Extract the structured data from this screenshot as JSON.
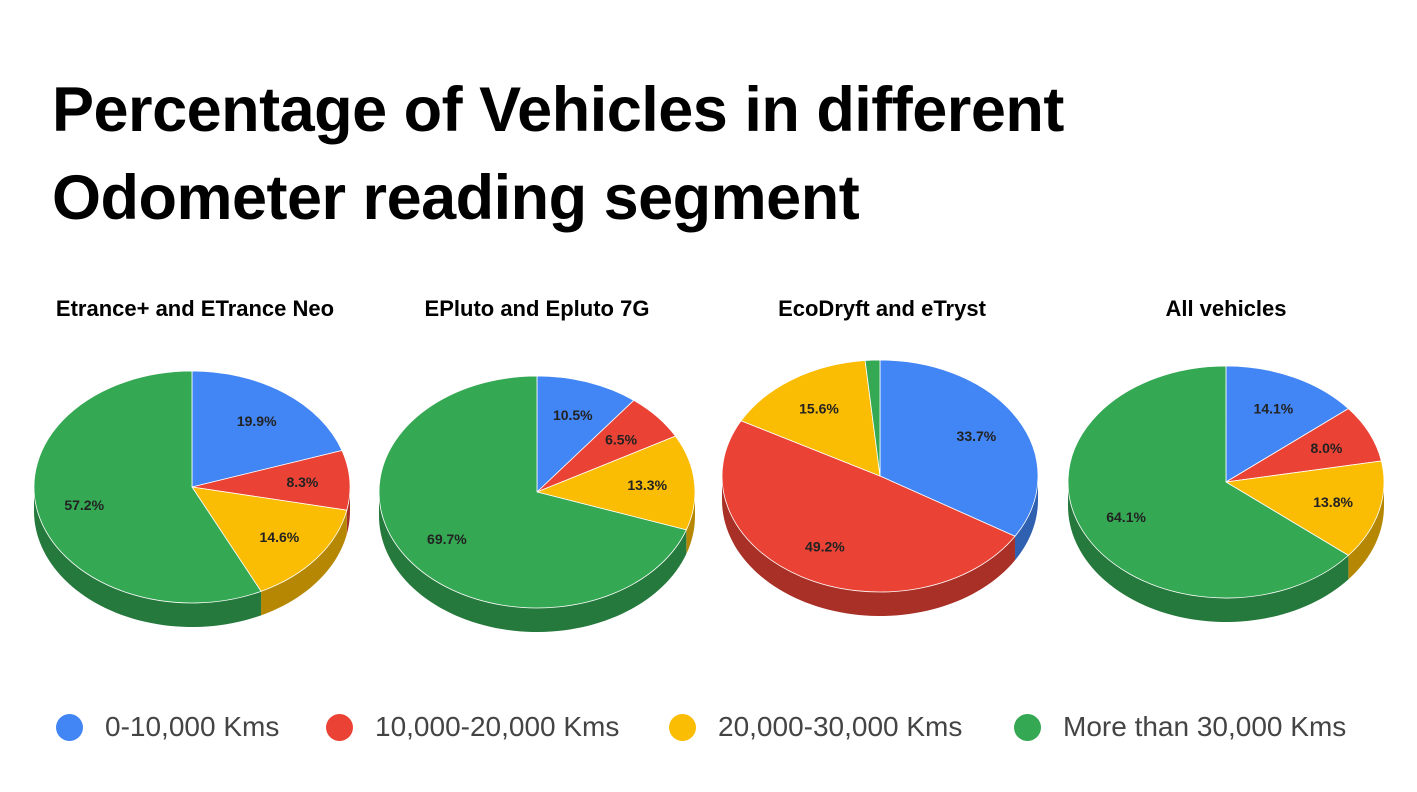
{
  "page": {
    "title_line1": "Percentage of Vehicles in different",
    "title_line2": "Odometer reading segment"
  },
  "colors": {
    "seg_0_10k": "#4285F4",
    "seg_10_20k": "#EA4335",
    "seg_20_30k": "#FBBC04",
    "seg_30k_plus": "#34A853"
  },
  "legend": {
    "items": [
      {
        "label": "0-10,000 Kms",
        "color": "#4285F4"
      },
      {
        "label": "10,000-20,000 Kms",
        "color": "#EA4335"
      },
      {
        "label": "20,000-30,000 Kms",
        "color": "#FBBC04"
      },
      {
        "label": "More than 30,000 Kms",
        "color": "#34A853"
      }
    ]
  },
  "chart_data": [
    {
      "type": "pie",
      "title": "Etrance+ and ETrance Neo",
      "categories": [
        "0-10,000 Kms",
        "10,000-20,000 Kms",
        "20,000-30,000 Kms",
        "More than 30,000 Kms"
      ],
      "values": [
        19.9,
        8.3,
        14.6,
        57.2
      ],
      "labels": [
        "19.9%",
        "8.3%",
        "14.6%",
        "57.2%"
      ],
      "start_angle_deg": 0,
      "direction": "clockwise",
      "legend_position": "bottom"
    },
    {
      "type": "pie",
      "title": "EPluto and Epluto 7G",
      "categories": [
        "0-10,000 Kms",
        "10,000-20,000 Kms",
        "20,000-30,000 Kms",
        "More than 30,000 Kms"
      ],
      "values": [
        10.5,
        6.5,
        13.3,
        69.7
      ],
      "labels": [
        "10.5%",
        "6.5%",
        "13.3%",
        "69.7%"
      ],
      "start_angle_deg": 0,
      "direction": "clockwise",
      "legend_position": "bottom"
    },
    {
      "type": "pie",
      "title": "EcoDryft and eTryst",
      "categories": [
        "0-10,000 Kms",
        "10,000-20,000 Kms",
        "20,000-30,000 Kms",
        "More than 30,000 Kms"
      ],
      "values": [
        33.7,
        49.2,
        15.6,
        1.5
      ],
      "labels": [
        "33.7%",
        "49.2%",
        "15.6%",
        ""
      ],
      "start_angle_deg": 0,
      "direction": "clockwise",
      "legend_position": "bottom"
    },
    {
      "type": "pie",
      "title": "All vehicles",
      "categories": [
        "0-10,000 Kms",
        "10,000-20,000 Kms",
        "20,000-30,000 Kms",
        "More than 30,000 Kms"
      ],
      "values": [
        14.1,
        8.0,
        13.8,
        64.1
      ],
      "labels": [
        "14.1%",
        "8.0%",
        "13.8%",
        "64.1%"
      ],
      "start_angle_deg": 0,
      "direction": "clockwise",
      "legend_position": "bottom"
    }
  ]
}
